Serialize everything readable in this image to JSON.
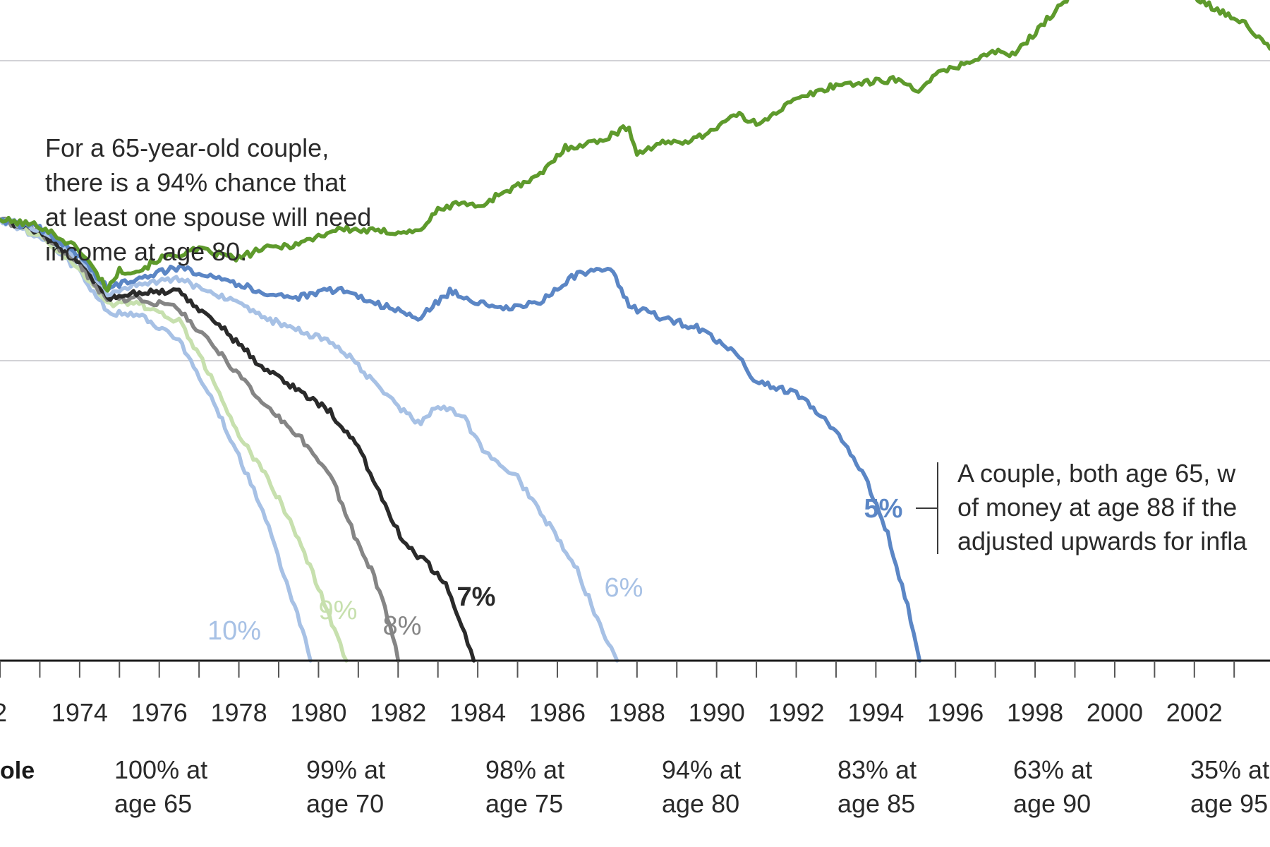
{
  "annotations": {
    "left_note": [
      "For a 65-year-old couple,",
      "there is a 94% chance that",
      "at least one spouse will need",
      "income at age 80."
    ],
    "right_note": [
      "A couple, both age 65, w",
      "of money at age 88 if the",
      "adjusted upwards for infla"
    ]
  },
  "probability_row": {
    "label": "ole",
    "items": [
      {
        "line1": "100% at",
        "line2": "age 65"
      },
      {
        "line1": "99% at",
        "line2": "age 70"
      },
      {
        "line1": "98% at",
        "line2": "age 75"
      },
      {
        "line1": "94% at",
        "line2": "age 80"
      },
      {
        "line1": "83% at",
        "line2": "age 85"
      },
      {
        "line1": "63% at",
        "line2": "age 90"
      },
      {
        "line1": "35% at",
        "line2": "age 95"
      }
    ]
  },
  "chart_data": {
    "type": "line",
    "title": "",
    "xlabel": "",
    "ylabel": "",
    "xlim": [
      1972,
      2003.9
    ],
    "ylim": [
      0,
      120
    ],
    "grid": "horizontal",
    "x_tick_labels": [
      "2",
      "1974",
      "1976",
      "1978",
      "1980",
      "1982",
      "1984",
      "1986",
      "1988",
      "1990",
      "1992",
      "1994",
      "1996",
      "1998",
      "2000",
      "2002"
    ],
    "series": [
      {
        "name": "",
        "color": "#5e9a2c",
        "x": [
          1972.0,
          1973.0,
          1974.0,
          1974.7,
          1975.0,
          1975.5,
          1976.0,
          1977.0,
          1978.0,
          1978.5,
          1979.5,
          1980.5,
          1981.5,
          1982.5,
          1983.0,
          1983.6,
          1984.0,
          1984.6,
          1985.5,
          1986.2,
          1987.0,
          1987.8,
          1988.0,
          1988.5,
          1989.5,
          1990.5,
          1991.0,
          1992.0,
          1993.0,
          1994.0,
          1994.5,
          1995.0,
          1995.5,
          1996.0,
          1997.0,
          1997.5,
          1998.3,
          1999.0,
          1999.6,
          2000.3,
          2001.0,
          2001.5,
          2002.3,
          2003.2,
          2003.9
        ],
        "values": [
          73.5,
          72.5,
          68.5,
          62,
          65,
          65,
          67,
          68.5,
          67,
          68.5,
          69.5,
          72,
          71.5,
          71.5,
          75,
          76.5,
          75.5,
          78,
          80.5,
          85.5,
          86.5,
          89,
          84.5,
          86,
          87,
          91,
          89.5,
          93.5,
          96,
          96.5,
          97,
          95,
          97.5,
          99,
          101.5,
          101,
          107,
          111.5,
          113.5,
          114.5,
          114.5,
          113,
          109.5,
          106.5,
          102
        ]
      },
      {
        "name": "5%",
        "color": "#5b86c5",
        "x": [
          1972.0,
          1973.0,
          1974.0,
          1974.7,
          1975.5,
          1976.5,
          1977.5,
          1978.5,
          1979.5,
          1980.5,
          1981.5,
          1982.5,
          1983.3,
          1984.5,
          1985.5,
          1986.5,
          1987.4,
          1987.8,
          1988.5,
          1989.5,
          1990.5,
          1991.0,
          1992.0,
          1993.0,
          1993.8,
          1994.3,
          1994.8,
          1995.1
        ],
        "values": [
          73.5,
          72,
          67.5,
          62,
          64,
          65.5,
          64,
          61.5,
          60.5,
          62,
          59.5,
          57,
          61.5,
          58.5,
          59.5,
          64.5,
          65,
          59,
          57.5,
          55.5,
          51,
          46.5,
          44.5,
          38.5,
          29.5,
          21,
          9,
          0
        ]
      },
      {
        "name": "6%",
        "color": "#a7c1e5",
        "x": [
          1972.0,
          1973.0,
          1974.0,
          1974.7,
          1975.5,
          1976.5,
          1977.5,
          1978.5,
          1979.5,
          1980.5,
          1981.5,
          1982.5,
          1983.0,
          1983.6,
          1984.2,
          1985.0,
          1985.8,
          1986.5,
          1987.0,
          1987.5
        ],
        "values": [
          73.5,
          72,
          67,
          61,
          63,
          63.5,
          61,
          57.5,
          55,
          52.5,
          45.5,
          39.5,
          42.5,
          41,
          34.5,
          30.5,
          22.5,
          15,
          7,
          0
        ]
      },
      {
        "name": "7%",
        "color": "#2a2a2a",
        "x": [
          1972.0,
          1973.0,
          1974.0,
          1974.7,
          1975.5,
          1976.5,
          1977.5,
          1978.5,
          1979.5,
          1980.3,
          1981.0,
          1981.6,
          1982.2,
          1982.7,
          1983.2,
          1983.6,
          1983.9
        ],
        "values": [
          73.5,
          71.5,
          66.5,
          60.5,
          61.5,
          61.5,
          56,
          49.5,
          45,
          41.5,
          35.5,
          27,
          19,
          16.5,
          12.5,
          6,
          0
        ]
      },
      {
        "name": "8%",
        "color": "#858585",
        "x": [
          1972.0,
          1973.0,
          1974.0,
          1974.7,
          1975.5,
          1976.5,
          1977.5,
          1978.5,
          1979.5,
          1980.3,
          1980.9,
          1981.4,
          1981.8,
          1982.0
        ],
        "values": [
          73.5,
          71.5,
          66,
          60,
          60.5,
          58.5,
          51.5,
          43.5,
          37.5,
          31,
          21,
          14,
          6,
          0
        ]
      },
      {
        "name": "9%",
        "color": "#c7e0ae",
        "x": [
          1972.0,
          1973.0,
          1974.0,
          1974.7,
          1975.5,
          1976.5,
          1977.3,
          1978.0,
          1978.8,
          1979.5,
          1980.0,
          1980.4,
          1980.7
        ],
        "values": [
          73.5,
          71,
          65.5,
          59.5,
          59.5,
          56.5,
          47.5,
          37.5,
          29.5,
          20.5,
          12,
          5,
          0
        ]
      },
      {
        "name": "10%",
        "color": "#a7c1e5",
        "x": [
          1972.0,
          1973.0,
          1974.0,
          1974.7,
          1975.5,
          1976.5,
          1977.3,
          1978.0,
          1978.6,
          1979.2,
          1979.6,
          1979.8
        ],
        "values": [
          73.5,
          70.5,
          65,
          58,
          57.5,
          53.5,
          44,
          34,
          25,
          13,
          5,
          0
        ]
      }
    ]
  }
}
